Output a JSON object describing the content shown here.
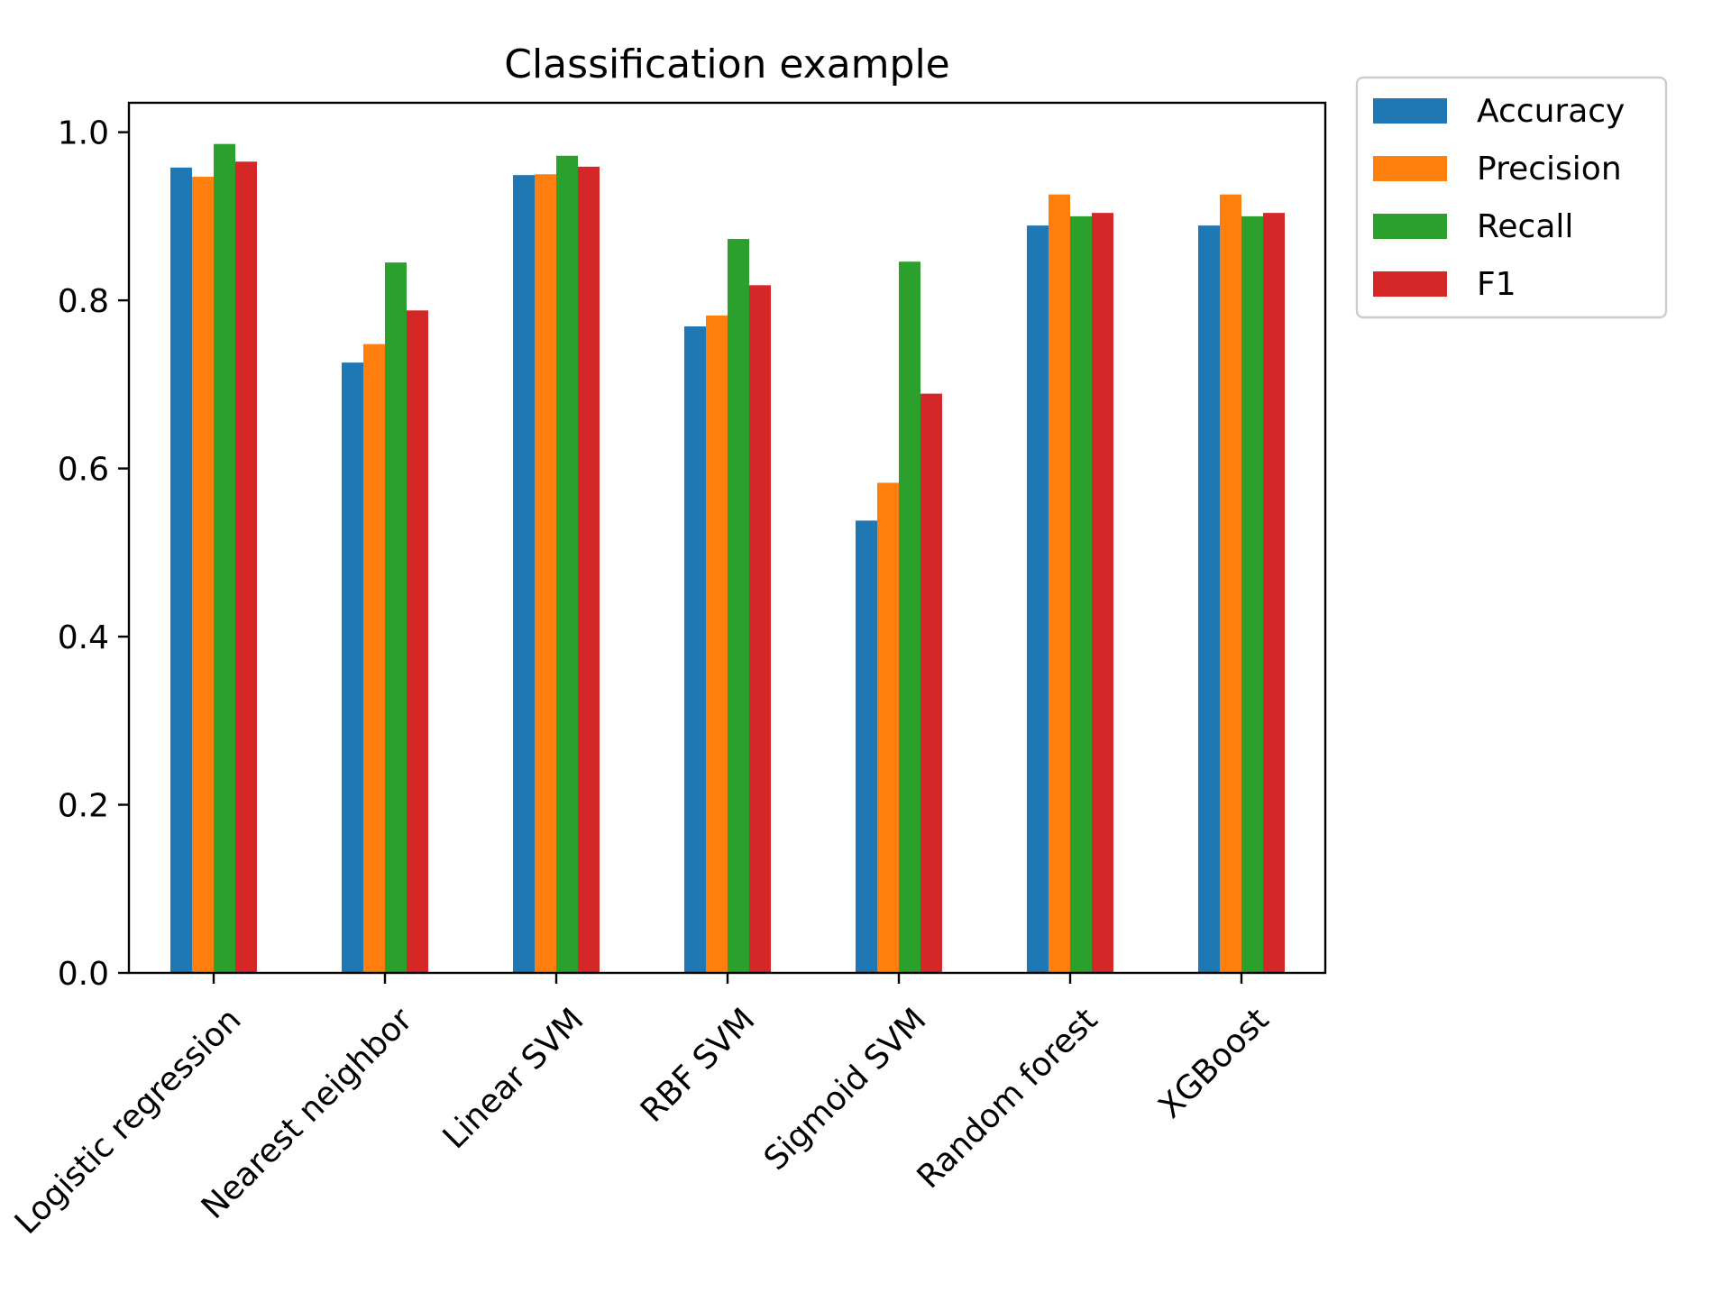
{
  "chart_data": {
    "type": "bar",
    "title": "Classification example",
    "xlabel": "",
    "ylabel": "",
    "categories": [
      "Logistic regression",
      "Nearest neighbor",
      "Linear SVM",
      "RBF SVM",
      "Sigmoid SVM",
      "Random forest",
      "XGBoost"
    ],
    "series": [
      {
        "name": "Accuracy",
        "color": "#1f77b4",
        "values": [
          0.958,
          0.726,
          0.949,
          0.769,
          0.538,
          0.889,
          0.889
        ]
      },
      {
        "name": "Precision",
        "color": "#ff7f0e",
        "values": [
          0.947,
          0.748,
          0.95,
          0.782,
          0.583,
          0.926,
          0.926
        ]
      },
      {
        "name": "Recall",
        "color": "#2ca02c",
        "values": [
          0.986,
          0.845,
          0.972,
          0.873,
          0.846,
          0.9,
          0.9
        ]
      },
      {
        "name": "F1",
        "color": "#d62728",
        "values": [
          0.965,
          0.788,
          0.959,
          0.818,
          0.689,
          0.904,
          0.904
        ]
      }
    ],
    "ylim": [
      0,
      1.035
    ],
    "yticks": [
      0.0,
      0.2,
      0.4,
      0.6,
      0.8,
      1.0
    ],
    "ytick_labels": [
      "0.0",
      "0.2",
      "0.4",
      "0.6",
      "0.8",
      "1.0"
    ],
    "x_tick_rotation": 45,
    "grid": false,
    "legend_position": "outside-top-right"
  }
}
